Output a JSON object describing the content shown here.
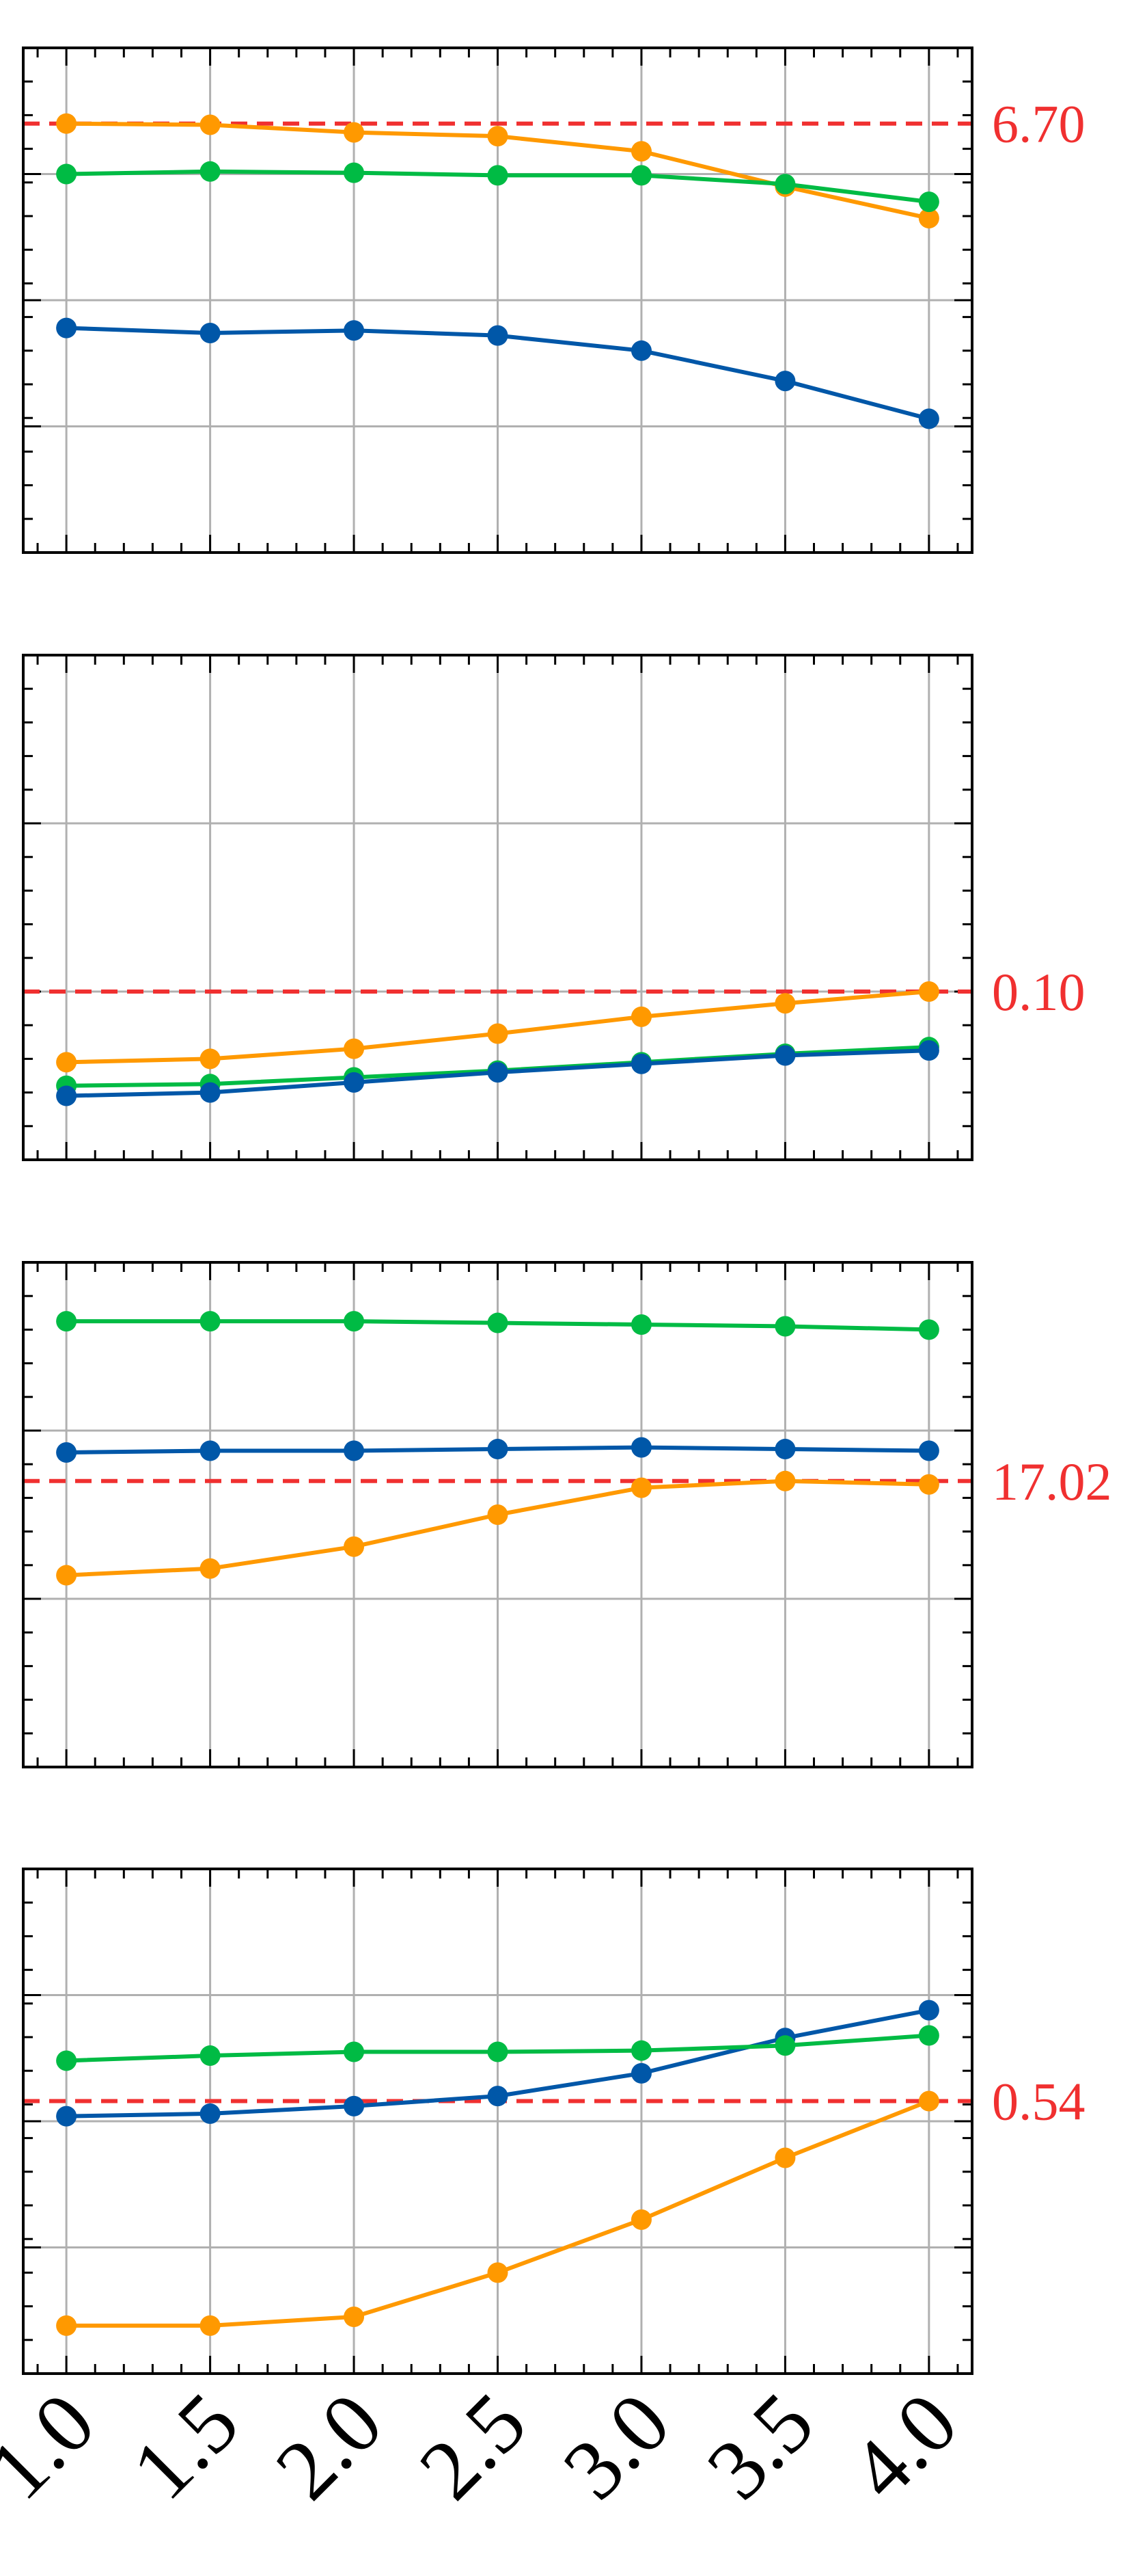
{
  "chart_data": [
    {
      "type": "line",
      "x": [
        1.0,
        1.5,
        2.0,
        2.5,
        3.0,
        3.5,
        4.0
      ],
      "ylim": [
        0.0,
        4.0
      ],
      "grid": true,
      "reference_line": {
        "value": 3.4,
        "label": "6.70",
        "color": "#f03030"
      },
      "series": [
        {
          "color": "#ff9900",
          "values": [
            3.4,
            3.39,
            3.33,
            3.3,
            3.18,
            2.9,
            2.65
          ]
        },
        {
          "color": "#00bb44",
          "values": [
            3.0,
            3.02,
            3.01,
            2.99,
            2.99,
            2.92,
            2.78
          ]
        },
        {
          "color": "#0057a8",
          "values": [
            1.78,
            1.74,
            1.76,
            1.72,
            1.6,
            1.36,
            1.06
          ]
        }
      ]
    },
    {
      "type": "line",
      "x": [
        1.0,
        1.5,
        2.0,
        2.5,
        3.0,
        3.5,
        4.0
      ],
      "ylim": [
        0.0,
        3.0
      ],
      "grid": true,
      "reference_line": {
        "value": 1.0,
        "label": "0.10",
        "color": "#f03030"
      },
      "series": [
        {
          "color": "#ff9900",
          "values": [
            0.58,
            0.6,
            0.66,
            0.75,
            0.85,
            0.93,
            1.0
          ]
        },
        {
          "color": "#00bb44",
          "values": [
            0.44,
            0.45,
            0.49,
            0.53,
            0.58,
            0.63,
            0.67
          ]
        },
        {
          "color": "#0057a8",
          "values": [
            0.38,
            0.4,
            0.46,
            0.52,
            0.57,
            0.62,
            0.65
          ]
        }
      ]
    },
    {
      "type": "line",
      "x": [
        1.0,
        1.5,
        2.0,
        2.5,
        3.0,
        3.5,
        4.0
      ],
      "ylim": [
        0.0,
        3.0
      ],
      "grid": true,
      "reference_line": {
        "value": 1.7,
        "label": "17.02",
        "color": "#f03030"
      },
      "series": [
        {
          "color": "#00bb44",
          "values": [
            2.65,
            2.65,
            2.65,
            2.64,
            2.63,
            2.62,
            2.6
          ]
        },
        {
          "color": "#0057a8",
          "values": [
            1.87,
            1.88,
            1.88,
            1.89,
            1.9,
            1.89,
            1.88
          ]
        },
        {
          "color": "#ff9900",
          "values": [
            1.14,
            1.18,
            1.31,
            1.5,
            1.66,
            1.7,
            1.68
          ]
        }
      ]
    },
    {
      "type": "line",
      "x": [
        1.0,
        1.5,
        2.0,
        2.5,
        3.0,
        3.5,
        4.0
      ],
      "ylim": [
        0.0,
        4.0
      ],
      "grid": true,
      "reference_line": {
        "value": 2.16,
        "label": "0.54",
        "color": "#f03030"
      },
      "series": [
        {
          "color": "#0057a8",
          "values": [
            2.04,
            2.06,
            2.12,
            2.2,
            2.38,
            2.66,
            2.88
          ]
        },
        {
          "color": "#00bb44",
          "values": [
            2.48,
            2.52,
            2.55,
            2.55,
            2.56,
            2.6,
            2.68
          ]
        },
        {
          "color": "#ff9900",
          "values": [
            0.38,
            0.38,
            0.45,
            0.8,
            1.22,
            1.71,
            2.16
          ]
        }
      ]
    }
  ],
  "x_tick_labels": [
    "1.0",
    "1.5",
    "2.0",
    "2.5",
    "3.0",
    "3.5",
    "4.0"
  ]
}
